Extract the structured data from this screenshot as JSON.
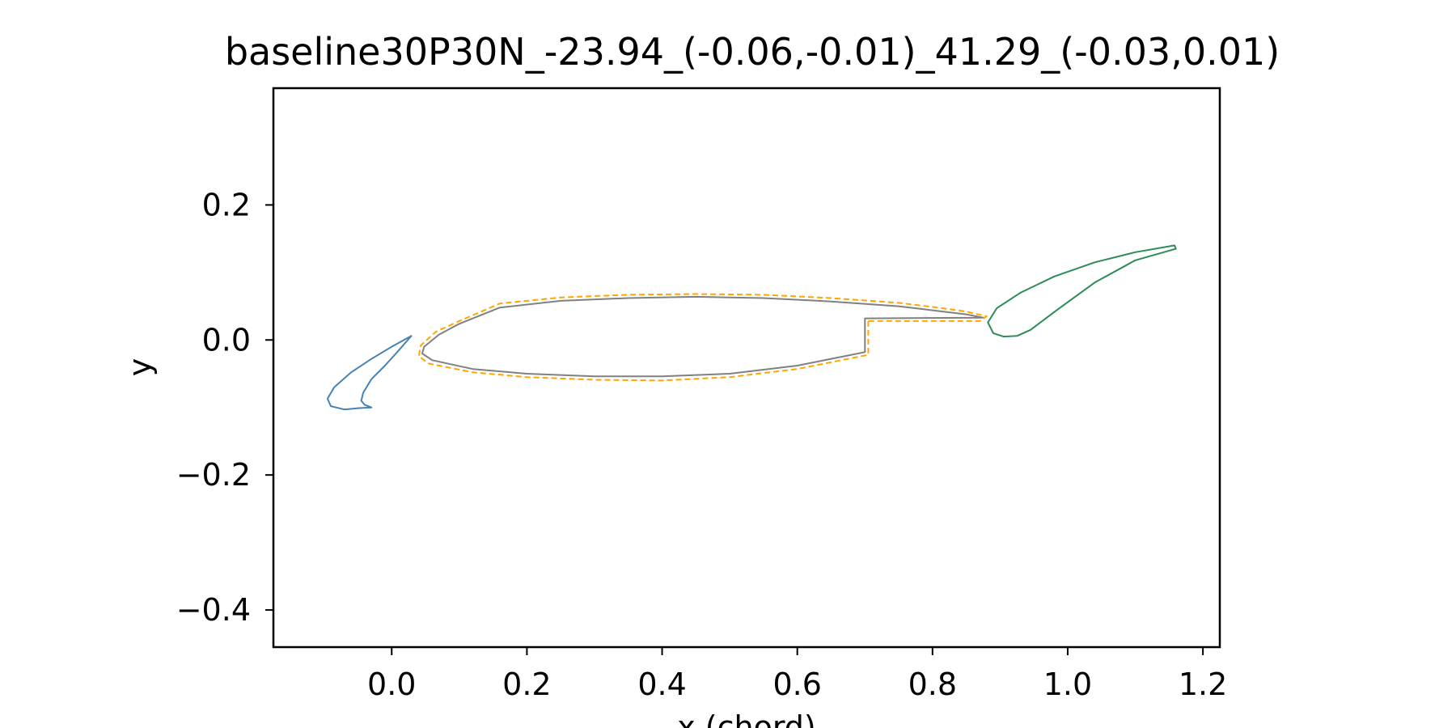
{
  "chart_data": {
    "type": "line",
    "title": "baseline30P30N_-23.94_(-0.06,-0.01)_41.29_(-0.03,0.01)",
    "xlabel": "x (chord)",
    "ylabel": "y",
    "xlim": [
      -0.175,
      1.225
    ],
    "ylim": [
      -0.455,
      0.373
    ],
    "xticks": [
      0.0,
      0.2,
      0.4,
      0.6,
      0.8,
      1.0,
      1.2
    ],
    "xtick_labels": [
      "0.0",
      "0.2",
      "0.4",
      "0.6",
      "0.8",
      "1.0",
      "1.2"
    ],
    "yticks": [
      -0.4,
      -0.2,
      0.0,
      0.2
    ],
    "ytick_labels": [
      "−0.4",
      "−0.2",
      "0.0",
      "0.2"
    ],
    "grid": false,
    "legend": "none",
    "series": [
      {
        "color": "#4682b4",
        "linestyle": "solid",
        "closed": true,
        "x": [
          0.029,
          0.0,
          -0.03,
          -0.06,
          -0.085,
          -0.095,
          -0.09,
          -0.07,
          -0.05,
          -0.03,
          -0.04,
          -0.045,
          -0.042,
          -0.03,
          -0.01,
          0.01,
          0.029
        ],
        "y": [
          0.006,
          -0.01,
          -0.028,
          -0.048,
          -0.07,
          -0.087,
          -0.098,
          -0.103,
          -0.101,
          -0.1,
          -0.096,
          -0.09,
          -0.078,
          -0.058,
          -0.038,
          -0.016,
          0.006
        ]
      },
      {
        "color": "#808080",
        "linestyle": "solid",
        "closed": true,
        "x": [
          0.7,
          0.7,
          0.6,
          0.5,
          0.4,
          0.3,
          0.2,
          0.12,
          0.06,
          0.045,
          0.048,
          0.07,
          0.1,
          0.16,
          0.25,
          0.35,
          0.45,
          0.55,
          0.65,
          0.75,
          0.8,
          0.85,
          0.875,
          0.7
        ],
        "y": [
          0.032,
          -0.018,
          -0.038,
          -0.05,
          -0.054,
          -0.054,
          -0.05,
          -0.043,
          -0.03,
          -0.02,
          -0.01,
          0.008,
          0.024,
          0.048,
          0.058,
          0.062,
          0.064,
          0.062,
          0.057,
          0.05,
          0.044,
          0.038,
          0.033,
          0.032
        ]
      },
      {
        "color": "#ffa500",
        "linestyle": "dashed",
        "closed": true,
        "x": [
          0.705,
          0.705,
          0.6,
          0.5,
          0.4,
          0.3,
          0.2,
          0.12,
          0.055,
          0.04,
          0.043,
          0.065,
          0.1,
          0.16,
          0.25,
          0.35,
          0.45,
          0.55,
          0.65,
          0.75,
          0.8,
          0.85,
          0.88,
          0.87,
          0.705
        ],
        "y": [
          0.028,
          -0.022,
          -0.043,
          -0.055,
          -0.06,
          -0.059,
          -0.055,
          -0.048,
          -0.035,
          -0.024,
          -0.008,
          0.012,
          0.028,
          0.054,
          0.063,
          0.067,
          0.068,
          0.067,
          0.062,
          0.055,
          0.049,
          0.042,
          0.035,
          0.028,
          0.028
        ]
      },
      {
        "color": "#2e8b57",
        "linestyle": "solid",
        "closed": true,
        "x": [
          1.158,
          1.1,
          1.04,
          0.98,
          0.93,
          0.895,
          0.882,
          0.89,
          0.905,
          0.925,
          0.945,
          0.985,
          1.04,
          1.1,
          1.16,
          1.158
        ],
        "y": [
          0.14,
          0.13,
          0.115,
          0.094,
          0.07,
          0.047,
          0.026,
          0.01,
          0.005,
          0.006,
          0.015,
          0.045,
          0.085,
          0.118,
          0.135,
          0.14
        ]
      }
    ]
  }
}
